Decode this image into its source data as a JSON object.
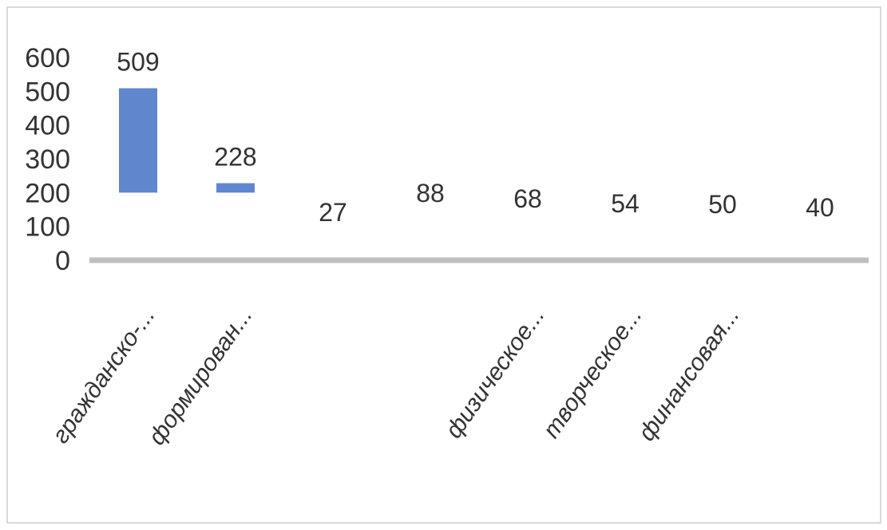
{
  "chart_data": {
    "type": "bar",
    "title": "",
    "xlabel": "",
    "ylabel": "",
    "categories": [
      "гражданско-...",
      "формирован...",
      "",
      "",
      "физическое...",
      "творческое...",
      "финансовая...",
      ""
    ],
    "values": [
      509,
      228,
      27,
      88,
      68,
      54,
      50,
      40
    ],
    "data_labels": [
      "509",
      "228",
      "27",
      "88",
      "68",
      "54",
      "50",
      "40"
    ],
    "y_ticks": [
      "0",
      "100",
      "200",
      "300",
      "400",
      "500",
      "600"
    ],
    "ylim": [
      0,
      600
    ],
    "grid": false,
    "legend": "none",
    "colors": {
      "bar": "#4472c4",
      "axis": "#bfbfbf",
      "text": "#333333",
      "frame": "#d9d9d9"
    }
  }
}
